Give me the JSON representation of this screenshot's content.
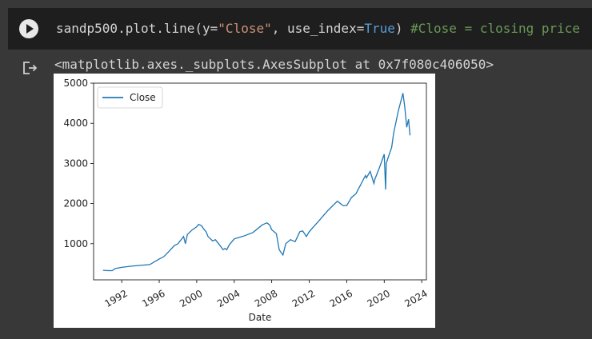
{
  "cell": {
    "code_prefix": "sandp500.plot.line(y=",
    "code_string": "\"Close\"",
    "code_mid": ", use_index=",
    "code_keyword": "True",
    "code_suffix": ")",
    "code_comment": " #Close = closing price",
    "run_icon": "play-icon",
    "output_icon": "output-redirect-icon",
    "output_repr": "<matplotlib.axes._subplots.AxesSubplot at 0x7f080c406050>"
  },
  "colors": {
    "line": "#1f77b4",
    "string": "#ce9178",
    "keyword": "#569cd6",
    "comment": "#6a9955"
  },
  "chart_data": {
    "type": "line",
    "xlabel": "Date",
    "ylabel": "",
    "xlim": [
      1989,
      2024.5
    ],
    "ylim": [
      100,
      5000
    ],
    "x_ticks": [
      1992,
      1996,
      2000,
      2004,
      2008,
      2012,
      2016,
      2020,
      2024
    ],
    "x_tick_labels": [
      "1992",
      "1996",
      "2000",
      "2004",
      "2008",
      "2012",
      "2016",
      "2020",
      "2024"
    ],
    "y_ticks": [
      1000,
      2000,
      3000,
      4000,
      5000
    ],
    "y_tick_labels": [
      "1000",
      "2000",
      "3000",
      "4000",
      "5000"
    ],
    "legend": {
      "placement": "upper-left"
    },
    "grid": false,
    "series": [
      {
        "name": "Close",
        "x": [
          1990.0,
          1990.5,
          1991.0,
          1991.3,
          1992.0,
          1993.0,
          1994.0,
          1995.0,
          1996.0,
          1996.5,
          1997.0,
          1997.6,
          1998.0,
          1998.6,
          1998.8,
          1999.0,
          1999.5,
          2000.0,
          2000.2,
          2000.5,
          2000.8,
          2001.0,
          2001.2,
          2001.7,
          2002.0,
          2002.5,
          2002.8,
          2003.0,
          2003.2,
          2003.5,
          2004.0,
          2005.0,
          2006.0,
          2007.0,
          2007.5,
          2007.8,
          2008.0,
          2008.5,
          2008.8,
          2009.0,
          2009.2,
          2009.5,
          2010.0,
          2010.5,
          2011.0,
          2011.3,
          2011.7,
          2012.0,
          2013.0,
          2014.0,
          2015.0,
          2015.6,
          2016.0,
          2016.5,
          2017.0,
          2018.0,
          2018.1,
          2018.5,
          2018.9,
          2019.0,
          2019.5,
          2020.0,
          2020.15,
          2020.22,
          2020.5,
          2020.8,
          2021.0,
          2021.5,
          2022.0,
          2022.2,
          2022.4,
          2022.6,
          2022.75
        ],
        "y": [
          340,
          330,
          330,
          380,
          410,
          440,
          460,
          480,
          620,
          680,
          800,
          950,
          1000,
          1180,
          1000,
          1230,
          1340,
          1420,
          1480,
          1450,
          1350,
          1300,
          1180,
          1070,
          1100,
          950,
          850,
          880,
          850,
          980,
          1120,
          1190,
          1280,
          1470,
          1520,
          1460,
          1350,
          1250,
          850,
          780,
          720,
          1000,
          1100,
          1050,
          1300,
          1320,
          1180,
          1300,
          1560,
          1830,
          2060,
          1950,
          1950,
          2150,
          2250,
          2700,
          2640,
          2800,
          2500,
          2600,
          2900,
          3230,
          2350,
          3000,
          3200,
          3400,
          3750,
          4300,
          4750,
          4400,
          3900,
          4100,
          3700
        ]
      }
    ]
  }
}
